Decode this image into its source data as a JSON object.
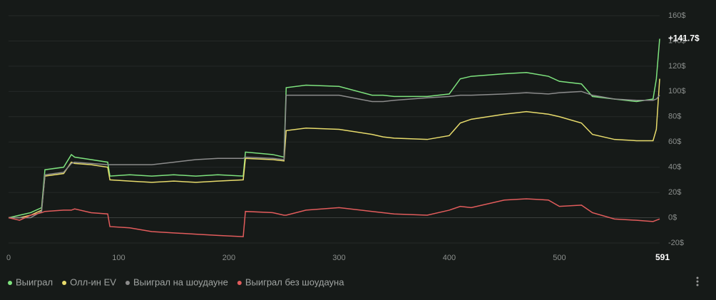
{
  "chart_data": {
    "type": "line",
    "end_label": "+141.7$",
    "x": [
      0,
      10,
      20,
      30,
      33,
      50,
      57,
      60,
      75,
      90,
      92,
      110,
      130,
      150,
      170,
      190,
      213,
      215,
      240,
      250,
      252,
      270,
      300,
      330,
      340,
      350,
      380,
      400,
      410,
      420,
      450,
      470,
      490,
      500,
      520,
      530,
      550,
      570,
      585,
      588,
      591
    ],
    "xlim": [
      0,
      591
    ],
    "xticks": [
      0,
      100,
      200,
      300,
      400,
      500
    ],
    "ylim": [
      -20,
      160
    ],
    "yticks": [
      {
        "value": -20,
        "label": "-20$"
      },
      {
        "value": 0,
        "label": "0$"
      },
      {
        "value": 20,
        "label": "20$"
      },
      {
        "value": 40,
        "label": "40$"
      },
      {
        "value": 60,
        "label": "60$"
      },
      {
        "value": 80,
        "label": "80$"
      },
      {
        "value": 100,
        "label": "100$"
      },
      {
        "value": 120,
        "label": "120$"
      },
      {
        "value": 140,
        "label": "140$"
      },
      {
        "value": 160,
        "label": "160$"
      }
    ],
    "grid": true,
    "series": [
      {
        "name": "Выиграл",
        "color": "#7ee37e",
        "values": [
          0,
          2,
          4,
          8,
          38,
          40,
          50,
          48,
          46,
          44,
          33,
          34,
          33,
          34,
          33,
          34,
          33,
          52,
          50,
          48,
          103,
          105,
          104,
          97,
          97,
          96,
          96,
          98,
          110,
          112,
          114,
          115,
          112,
          108,
          106,
          96,
          94,
          92,
          94,
          110,
          141.7
        ]
      },
      {
        "name": "Олл-ин EV",
        "color": "#e8dc6c",
        "values": [
          0,
          0,
          2,
          6,
          33,
          35,
          44,
          43,
          42,
          40,
          30,
          29,
          28,
          29,
          28,
          29,
          30,
          47,
          46,
          45,
          69,
          71,
          70,
          66,
          64,
          63,
          62,
          65,
          75,
          78,
          82,
          84,
          82,
          80,
          75,
          66,
          62,
          61,
          61,
          70,
          110
        ]
      },
      {
        "name": "Выиграл на шоудауне",
        "color": "#8c8c8c",
        "values": [
          0,
          0,
          0,
          5,
          34,
          36,
          43,
          44,
          43,
          42,
          42,
          42,
          42,
          44,
          46,
          47,
          47,
          48,
          47,
          46,
          97,
          97,
          97,
          92,
          92,
          93,
          95,
          96,
          97,
          97,
          98,
          99,
          98,
          99,
          100,
          97,
          94,
          93,
          93,
          94,
          97
        ]
      },
      {
        "name": "Выиграл без шоудауна",
        "color": "#e25c5c",
        "values": [
          0,
          -2,
          2,
          4,
          5,
          6,
          6,
          7,
          4,
          3,
          -7,
          -8,
          -11,
          -12,
          -13,
          -14,
          -15,
          5,
          4,
          2,
          2,
          6,
          8,
          5,
          4,
          3,
          2,
          6,
          9,
          8,
          14,
          15,
          14,
          9,
          10,
          4,
          -1,
          -2,
          -3,
          -2,
          -1
        ]
      }
    ]
  }
}
